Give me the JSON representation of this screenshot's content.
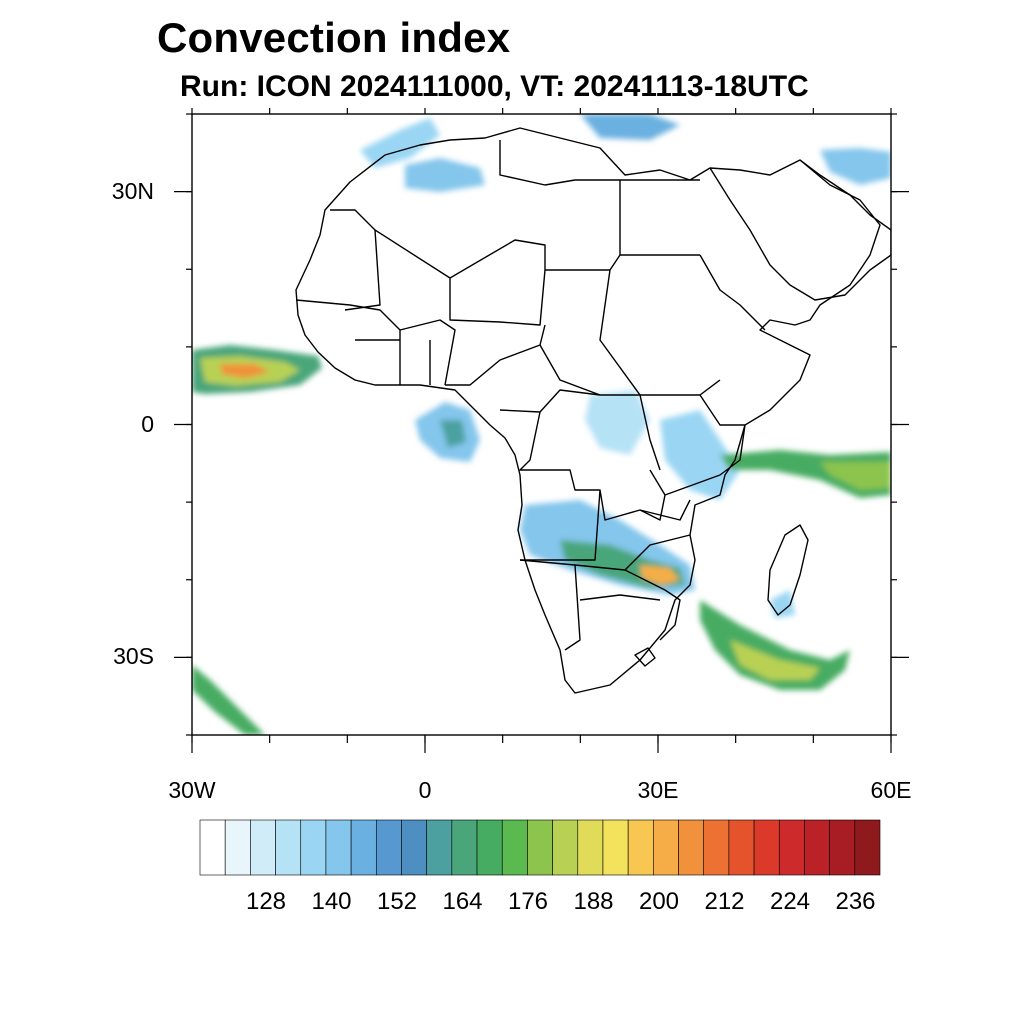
{
  "title": "Convection index",
  "subtitle": "Run: ICON 2024111000,  VT: 20241113-18UTC",
  "map": {
    "region": "Africa",
    "lon_range": [
      -30,
      60
    ],
    "lat_range": [
      -40,
      40
    ],
    "x_ticks": [
      {
        "lon": -30,
        "label": "30W"
      },
      {
        "lon": 0,
        "label": "0"
      },
      {
        "lon": 30,
        "label": "30E"
      },
      {
        "lon": 60,
        "label": "60E"
      }
    ],
    "y_ticks": [
      {
        "lat": 30,
        "label": "30N"
      },
      {
        "lat": 0,
        "label": "0"
      },
      {
        "lat": -30,
        "label": "30S"
      }
    ]
  },
  "colorbar": {
    "colors": [
      "#ffffff",
      "#e8f5fb",
      "#d0ecf8",
      "#b6e2f6",
      "#9ad6f3",
      "#84c6ec",
      "#6ab0e0",
      "#5698cf",
      "#4d8fc0",
      "#4ca0a0",
      "#4aa67a",
      "#46ac62",
      "#5bba4f",
      "#8cc44e",
      "#b8d154",
      "#e0dc5a",
      "#f3e25c",
      "#f7c751",
      "#f6ad47",
      "#f1913b",
      "#ec7133",
      "#e4532c",
      "#db3a2b",
      "#cc2a2b",
      "#bb2228",
      "#a81c24",
      "#8f1a1e"
    ],
    "labels": [
      "128",
      "140",
      "152",
      "164",
      "176",
      "188",
      "200",
      "212",
      "224",
      "236"
    ]
  }
}
